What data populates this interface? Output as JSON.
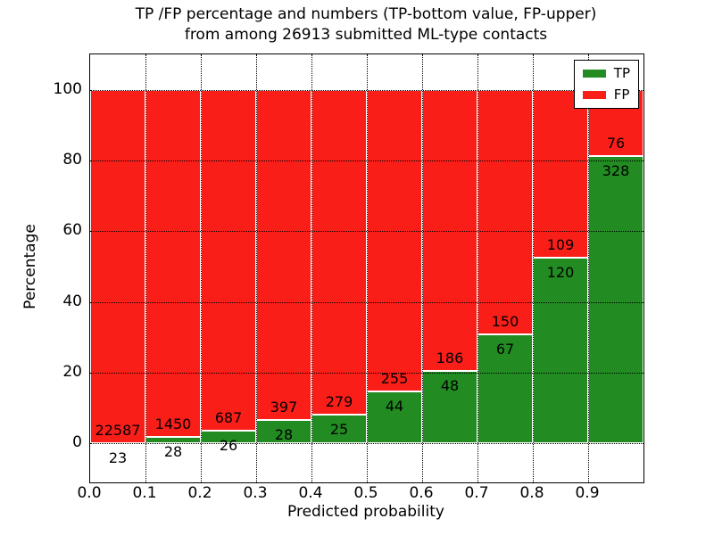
{
  "chart_data": {
    "type": "bar",
    "stacked": true,
    "title": "TP /FP percentage and numbers (TP-bottom value, FP-upper)\nfrom among 26913 submitted ML-type contacts",
    "xlabel": "Predicted probability",
    "ylabel": "Percentage",
    "x_tick_labels": [
      "0.0",
      "0.1",
      "0.2",
      "0.3",
      "0.4",
      "0.5",
      "0.6",
      "0.7",
      "0.8",
      "0.9"
    ],
    "y_ticks": [
      0,
      20,
      40,
      60,
      80,
      100
    ],
    "ylim": [
      -11,
      110
    ],
    "bin_width": 0.1,
    "note": "bar heights are TP/(TP+FP) and FP/(TP+FP) percentages per bin; labels show raw counts",
    "series": [
      {
        "name": "TP",
        "color": "#228b22",
        "counts": [
          23,
          28,
          26,
          28,
          25,
          44,
          48,
          67,
          120,
          328
        ]
      },
      {
        "name": "FP",
        "color": "#fa1e19",
        "counts": [
          22587,
          1450,
          687,
          397,
          279,
          255,
          186,
          150,
          109,
          76
        ]
      }
    ],
    "tp_percent_approx": [
      0.1,
      1.9,
      3.6,
      6.6,
      8.2,
      14.7,
      20.5,
      30.9,
      52.4,
      81.2
    ],
    "grid": {
      "style": "dotted",
      "color": "#000000"
    },
    "legend": {
      "position": "upper right",
      "entries": [
        "TP",
        "FP"
      ]
    }
  }
}
